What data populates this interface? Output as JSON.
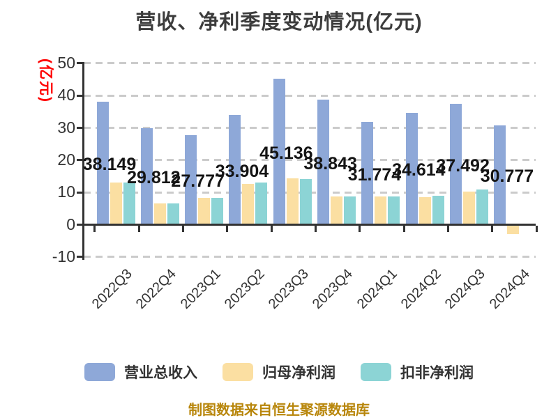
{
  "title": "营收、净利季度变动情况(亿元)",
  "footer": {
    "source_note": "制图数据来自恒生聚源数据库"
  },
  "colors": {
    "title": "#3c3c3c",
    "axis": "#333333",
    "grid": "#cbcbcb",
    "y_unit_label": "#ff0000",
    "value_label": "#141414",
    "source_note": "#b8860b",
    "revenue": "#8ea8d8",
    "net_profit": "#fbdfa2",
    "deducted_net_profit": "#8cd4d5"
  },
  "chart_data": {
    "type": "bar",
    "title": "营收、净利季度变动情况(亿元)",
    "ylabel": "(亿元)",
    "xlabel": "",
    "ylim": [
      -10,
      50
    ],
    "yticks": [
      50,
      40,
      30,
      20,
      10,
      0,
      -10
    ],
    "grid": true,
    "legend_position": "bottom",
    "categories": [
      "2022Q3",
      "2022Q4",
      "2023Q1",
      "2023Q2",
      "2023Q3",
      "2023Q4",
      "2024Q1",
      "2024Q2",
      "2024Q3",
      "2024Q4"
    ],
    "series": [
      {
        "key": "revenue",
        "name": "营业总收入",
        "color": "#8ea8d8",
        "values": [
          38.149,
          29.812,
          27.777,
          33.904,
          45.136,
          38.843,
          31.774,
          34.614,
          37.492,
          30.777
        ],
        "labels": [
          "38.149",
          "29.812",
          "27.777",
          "33.904",
          "45.136",
          "38.843",
          "31.774",
          "34.614",
          "37.492",
          "30.777"
        ]
      },
      {
        "key": "net-profit",
        "name": "归母净利润",
        "color": "#fbdfa2",
        "values": [
          13.0,
          6.5,
          8.3,
          12.6,
          14.3,
          8.7,
          8.7,
          8.5,
          10.2,
          -3.0
        ]
      },
      {
        "key": "deducted-net-profit",
        "name": "扣非净利润",
        "color": "#8cd4d5",
        "values": [
          13.0,
          6.5,
          8.3,
          13.0,
          14.1,
          8.7,
          8.7,
          8.9,
          10.9,
          0
        ]
      }
    ]
  }
}
